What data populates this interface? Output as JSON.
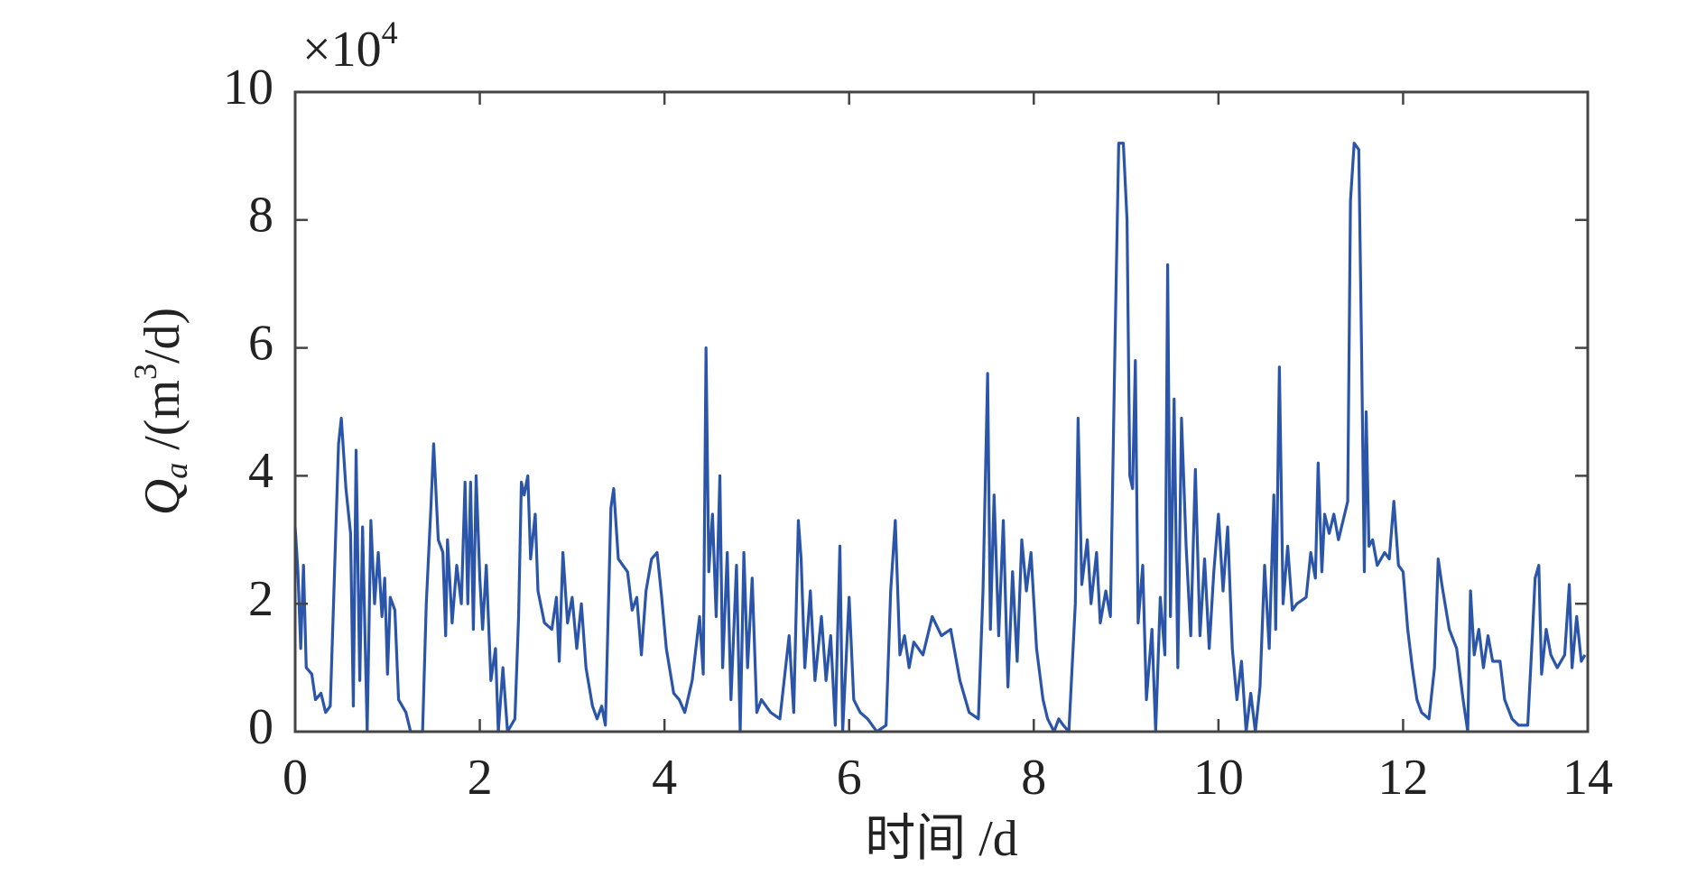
{
  "chart_data": {
    "type": "line",
    "ylabel_parts": [
      "Q",
      "a",
      " /(m",
      "3",
      "/d)"
    ],
    "y_multiplier": "×10",
    "y_multiplier_exponent": "4",
    "xlabel": "时间 /d",
    "xlim": [
      0,
      14
    ],
    "xticks": [
      0,
      2,
      4,
      6,
      8,
      10,
      12,
      14
    ],
    "ylim": [
      0,
      10
    ],
    "yticks": [
      0,
      2,
      4,
      6,
      8,
      10
    ],
    "grid": false,
    "x": [
      0,
      0.03,
      0.06,
      0.09,
      0.12,
      0.18,
      0.22,
      0.28,
      0.33,
      0.38,
      0.42,
      0.47,
      0.5,
      0.55,
      0.6,
      0.63,
      0.66,
      0.7,
      0.73,
      0.78,
      0.82,
      0.86,
      0.9,
      0.94,
      0.97,
      1.0,
      1.03,
      1.08,
      1.12,
      1.2,
      1.25,
      1.38,
      1.42,
      1.47,
      1.5,
      1.55,
      1.6,
      1.63,
      1.65,
      1.7,
      1.75,
      1.8,
      1.84,
      1.87,
      1.9,
      1.93,
      1.96,
      2.0,
      2.03,
      2.07,
      2.12,
      2.17,
      2.2,
      2.25,
      2.3,
      2.38,
      2.42,
      2.45,
      2.48,
      2.52,
      2.55,
      2.6,
      2.63,
      2.7,
      2.78,
      2.83,
      2.86,
      2.9,
      2.95,
      3.0,
      3.05,
      3.1,
      3.15,
      3.22,
      3.27,
      3.32,
      3.36,
      3.42,
      3.45,
      3.5,
      3.55,
      3.6,
      3.65,
      3.7,
      3.75,
      3.8,
      3.86,
      3.92,
      3.97,
      4.02,
      4.1,
      4.16,
      4.22,
      4.3,
      4.38,
      4.42,
      4.45,
      4.48,
      4.52,
      4.56,
      4.6,
      4.63,
      4.68,
      4.72,
      4.78,
      4.82,
      4.86,
      4.9,
      4.95,
      5.0,
      5.05,
      5.15,
      5.25,
      5.35,
      5.4,
      5.45,
      5.48,
      5.52,
      5.58,
      5.63,
      5.7,
      5.75,
      5.8,
      5.85,
      5.9,
      5.93,
      6.0,
      6.05,
      6.12,
      6.2,
      6.3,
      6.4,
      6.45,
      6.5,
      6.55,
      6.6,
      6.65,
      6.7,
      6.8,
      6.9,
      7.0,
      7.1,
      7.2,
      7.3,
      7.4,
      7.45,
      7.5,
      7.53,
      7.57,
      7.62,
      7.67,
      7.72,
      7.77,
      7.82,
      7.87,
      7.92,
      7.97,
      8.03,
      8.1,
      8.15,
      8.22,
      8.27,
      8.32,
      8.38,
      8.45,
      8.48,
      8.52,
      8.58,
      8.62,
      8.68,
      8.72,
      8.78,
      8.83,
      8.88,
      8.92,
      8.97,
      9.01,
      9.04,
      9.07,
      9.1,
      9.13,
      9.18,
      9.22,
      9.28,
      9.32,
      9.37,
      9.42,
      9.45,
      9.48,
      9.52,
      9.56,
      9.6,
      9.65,
      9.7,
      9.75,
      9.8,
      9.85,
      9.9,
      9.95,
      10.0,
      10.05,
      10.1,
      10.15,
      10.2,
      10.25,
      10.3,
      10.35,
      10.4,
      10.45,
      10.5,
      10.55,
      10.6,
      10.62,
      10.66,
      10.7,
      10.75,
      10.8,
      10.85,
      10.95,
      11.0,
      11.05,
      11.08,
      11.12,
      11.15,
      11.2,
      11.25,
      11.3,
      11.35,
      11.4,
      11.43,
      11.47,
      11.52,
      11.55,
      11.58,
      11.6,
      11.63,
      11.67,
      11.72,
      11.8,
      11.85,
      11.9,
      11.95,
      12.0,
      12.05,
      12.1,
      12.15,
      12.2,
      12.28,
      12.34,
      12.38,
      12.42,
      12.5,
      12.58,
      12.65,
      12.7,
      12.73,
      12.77,
      12.82,
      12.87,
      12.92,
      12.97,
      13.05,
      13.1,
      13.18,
      13.25,
      13.35,
      13.4,
      13.43,
      13.47,
      13.5,
      13.55,
      13.6,
      13.67,
      13.75,
      13.8,
      13.83,
      13.88,
      13.93,
      13.97
    ],
    "series": [
      {
        "color": "#2b55a8",
        "values": [
          3.2,
          2.5,
          1.3,
          2.6,
          1.0,
          0.9,
          0.5,
          0.6,
          0.3,
          0.4,
          2.2,
          4.5,
          4.9,
          3.8,
          3.1,
          0.4,
          4.4,
          0.8,
          3.2,
          0,
          3.3,
          2.0,
          2.8,
          1.8,
          2.4,
          0.9,
          2.1,
          1.9,
          0.5,
          0.3,
          0,
          0,
          2.0,
          3.5,
          4.5,
          3.0,
          2.8,
          1.5,
          3.0,
          1.7,
          2.6,
          2.0,
          3.9,
          2.0,
          3.9,
          1.6,
          4.0,
          2.4,
          1.6,
          2.6,
          0.8,
          1.3,
          0,
          1.0,
          0,
          0.2,
          1.8,
          3.9,
          3.7,
          4.0,
          2.7,
          3.4,
          2.2,
          1.7,
          1.6,
          2.1,
          1.1,
          2.8,
          1.7,
          2.1,
          1.3,
          2.0,
          1.0,
          0.4,
          0.2,
          0.4,
          0.1,
          3.5,
          3.8,
          2.7,
          2.6,
          2.5,
          1.9,
          2.1,
          1.2,
          2.2,
          2.7,
          2.8,
          2.1,
          1.3,
          0.6,
          0.5,
          0.3,
          0.8,
          1.8,
          0.9,
          6.0,
          2.5,
          3.4,
          1.8,
          4.0,
          1.0,
          2.8,
          0.5,
          2.6,
          0,
          2.8,
          1.0,
          2.4,
          0.3,
          0.5,
          0.3,
          0.2,
          1.5,
          0.3,
          3.3,
          2.7,
          1.0,
          2.2,
          0.8,
          1.8,
          0.8,
          1.5,
          0.1,
          2.9,
          0,
          2.1,
          0.5,
          0.3,
          0.2,
          0,
          0.1,
          2.2,
          3.3,
          1.2,
          1.5,
          1.0,
          1.4,
          1.2,
          1.8,
          1.5,
          1.6,
          0.8,
          0.3,
          0.2,
          2.2,
          5.6,
          1.6,
          3.7,
          1.5,
          3.3,
          0.7,
          2.5,
          1.1,
          3.0,
          2.2,
          2.8,
          1.3,
          0.5,
          0.2,
          0,
          0.2,
          0.1,
          0,
          2.0,
          4.9,
          2.3,
          3.0,
          2.0,
          2.8,
          1.7,
          2.2,
          1.8,
          6.1,
          9.2,
          9.2,
          8.0,
          4.0,
          3.8,
          5.8,
          1.7,
          2.6,
          0.5,
          1.6,
          0,
          2.1,
          1.2,
          7.3,
          1.8,
          5.2,
          1.0,
          4.9,
          2.9,
          1.5,
          4.1,
          1.5,
          2.7,
          1.3,
          2.5,
          3.4,
          2.2,
          3.2,
          1.3,
          0.5,
          1.1,
          0,
          0.6,
          0,
          0.7,
          2.6,
          1.3,
          3.7,
          1.6,
          5.7,
          2.0,
          2.9,
          1.9,
          2.0,
          2.1,
          2.8,
          2.4,
          4.2,
          2.5,
          3.4,
          3.1,
          3.4,
          3.0,
          3.3,
          3.6,
          8.3,
          9.2,
          9.1,
          6.0,
          2.5,
          5.0,
          2.9,
          3.0,
          2.6,
          2.8,
          2.7,
          3.6,
          2.6,
          2.5,
          1.6,
          1.0,
          0.5,
          0.3,
          0.2,
          1.0,
          2.7,
          2.3,
          1.6,
          1.3,
          0.5,
          0,
          2.2,
          1.2,
          1.6,
          1.0,
          1.5,
          1.1,
          1.1,
          0.5,
          0.2,
          0.1,
          0.1,
          1.5,
          2.4,
          2.6,
          0.9,
          1.6,
          1.2,
          1.0,
          1.2,
          2.3,
          1.0,
          1.8,
          1.1,
          1.2
        ]
      }
    ]
  }
}
